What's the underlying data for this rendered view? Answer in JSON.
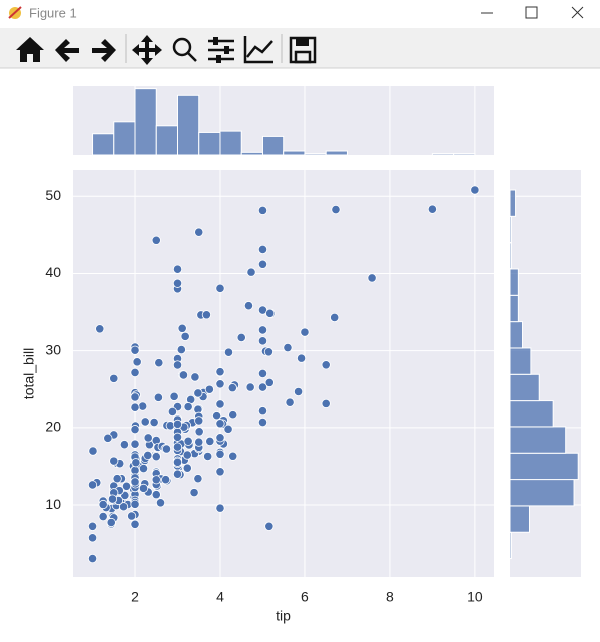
{
  "window": {
    "title": "Figure 1"
  },
  "chart_data": [
    {
      "type": "scatter",
      "x_label": "tip",
      "y_label": "total_bill",
      "color": "#4c72b0",
      "grid": true,
      "xlim": [
        0.54,
        10.45
      ],
      "ylim": [
        0.68,
        53.4
      ],
      "xticks": [
        2,
        4,
        6,
        8,
        10
      ],
      "yticks": [
        10,
        20,
        30,
        40,
        50
      ],
      "x": [
        1.01,
        1.66,
        3.5,
        3.31,
        3.61,
        4.71,
        2,
        3.12,
        1.96,
        3.23,
        1.71,
        5,
        1.57,
        3,
        3.02,
        3.92,
        1.67,
        3.71,
        3.5,
        3.35,
        4.08,
        2.75,
        2.23,
        7.58,
        3.18,
        2.34,
        2,
        2,
        4.3,
        3,
        1.45,
        2.5,
        3,
        2.45,
        3.27,
        3.6,
        2,
        3.07,
        2.31,
        5,
        2.24,
        2.54,
        3.06,
        1.32,
        5.6,
        3,
        5,
        6,
        2.05,
        3,
        2.5,
        2.6,
        5.2,
        1.56,
        4.34,
        3.51,
        3,
        1.5,
        1.76,
        6.73,
        3.21,
        2,
        1.98,
        3.76,
        2.64,
        3.15,
        2.47,
        1,
        2.01,
        2.09,
        1.97,
        3,
        3.14,
        5,
        2.2,
        1.25,
        3.08,
        4,
        3,
        2.71,
        3,
        3.4,
        1.83,
        5,
        2.03,
        5.17,
        2,
        4,
        5.85,
        3,
        3,
        3.5,
        1,
        4.3,
        3.25,
        4.73,
        4,
        1.5,
        3,
        1.5,
        2.5,
        3,
        2.5,
        3.48,
        4.08,
        1.64,
        4.06,
        4.29,
        3.76,
        4,
        3,
        1,
        4,
        2.55,
        4,
        3.5,
        5.07,
        1.5,
        1.8,
        2.92,
        2.31,
        1.68,
        2.5,
        2,
        2.52,
        4.2,
        1.48,
        2,
        2,
        2.18,
        1.5,
        2.83,
        1.5,
        2,
        3.25,
        1.25,
        2,
        2,
        2,
        2.75,
        3.5,
        6.7,
        5,
        5,
        2.3,
        1.5,
        1.36,
        1.63,
        1.73,
        2,
        2.5,
        2,
        2.74,
        2,
        2,
        5.14,
        5,
        3.75,
        2.61,
        2,
        3.5,
        2.5,
        2,
        2,
        3,
        3.48,
        2.24,
        4.5,
        1.61,
        2,
        10,
        3.16,
        5.15,
        3.18,
        4,
        3.11,
        2,
        2,
        4,
        3.55,
        3.68,
        5.65,
        3.5,
        6.5,
        3,
        5,
        3.5,
        2,
        3.5,
        4,
        1.5,
        4.19,
        2.56,
        2.02,
        4,
        1.44,
        2,
        5,
        2,
        2,
        4,
        2.01,
        2,
        2.5,
        4,
        3.23,
        3.41,
        3,
        2.03,
        2.23,
        2,
        5.16,
        9,
        2.5,
        6.5,
        1.1,
        3,
        1.5,
        1.44,
        3.09,
        2.2,
        3.48,
        1.92,
        3,
        1.58,
        2.5,
        2,
        3,
        2.72,
        2.88,
        2,
        3,
        3.39,
        1.47,
        3,
        1.25,
        1,
        1.17,
        4.67,
        5.92,
        2,
        2,
        1.75,
        3
      ],
      "values": [
        16.99,
        10.34,
        21.01,
        23.68,
        24.59,
        25.29,
        8.77,
        26.88,
        15.04,
        14.78,
        10.27,
        35.26,
        15.42,
        18.43,
        14.83,
        21.58,
        10.33,
        16.29,
        16.97,
        20.65,
        17.92,
        20.29,
        15.77,
        39.42,
        19.82,
        17.81,
        13.37,
        12.69,
        21.7,
        19.65,
        9.55,
        18.35,
        15.06,
        20.69,
        17.78,
        24.06,
        16.31,
        16.93,
        18.69,
        31.27,
        16.04,
        17.46,
        13.94,
        9.68,
        30.4,
        18.29,
        22.23,
        32.4,
        28.55,
        18.04,
        12.54,
        10.29,
        34.81,
        9.94,
        25.56,
        19.49,
        38.01,
        26.41,
        11.24,
        48.27,
        20.29,
        13.81,
        11.02,
        18.29,
        17.59,
        20.08,
        16.45,
        3.07,
        20.23,
        15.01,
        12.02,
        17.07,
        26.86,
        25.28,
        14.73,
        10.51,
        17.92,
        27.2,
        22.76,
        17.29,
        19.44,
        16.66,
        10.07,
        32.68,
        15.98,
        34.83,
        13.03,
        18.28,
        24.71,
        21.16,
        28.97,
        22.49,
        5.75,
        16.32,
        22.75,
        40.17,
        27.28,
        12.03,
        21.01,
        12.46,
        11.35,
        15.38,
        44.3,
        22.42,
        20.92,
        15.36,
        20.49,
        25.21,
        18.24,
        14.31,
        14,
        7.25,
        38.07,
        23.95,
        25.71,
        17.31,
        29.93,
        10.65,
        12.43,
        24.08,
        11.69,
        13.42,
        14.26,
        15.95,
        12.48,
        29.8,
        8.52,
        14.52,
        11.38,
        22.82,
        19.08,
        20.27,
        11.17,
        12.26,
        18.26,
        8.51,
        10.33,
        14.15,
        16,
        13.16,
        17.47,
        34.3,
        41.19,
        27.05,
        16.43,
        8.35,
        18.64,
        11.87,
        9.78,
        7.51,
        14.07,
        13.13,
        17.26,
        24.55,
        19.77,
        29.85,
        48.17,
        25,
        13.39,
        16.49,
        21.5,
        12.66,
        16.21,
        13.81,
        17.51,
        24.52,
        20.76,
        31.71,
        10.59,
        10.63,
        50.81,
        15.81,
        7.25,
        31.85,
        16.82,
        32.9,
        17.89,
        14.48,
        9.6,
        34.63,
        34.65,
        23.33,
        45.35,
        23.17,
        40.55,
        20.69,
        20.9,
        30.46,
        18.15,
        23.1,
        15.69,
        19.81,
        28.44,
        15.48,
        16.58,
        7.56,
        10.34,
        43.11,
        13,
        13.51,
        18.71,
        12.74,
        13,
        16.4,
        20.53,
        16.47,
        26.59,
        38.73,
        24.27,
        12.76,
        30.06,
        25.89,
        48.33,
        13.27,
        28.17,
        12.9,
        28.15,
        11.59,
        7.74,
        30.14,
        12.16,
        13.42,
        8.58,
        15.98,
        13.42,
        16.27,
        10.09,
        20.45,
        13.28,
        22.12,
        24.01,
        15.69,
        11.61,
        10.77,
        15.53,
        10.07,
        12.6,
        32.83,
        35.83,
        29.03,
        27.18,
        22.67,
        17.82,
        18.78
      ]
    },
    {
      "type": "histogram",
      "orientation": "vertical",
      "color": "#4c72b0",
      "xlim": [
        0.54,
        10.45
      ],
      "ylim": [
        0,
        52
      ],
      "bins": [
        1,
        1.5,
        2,
        2.5,
        3,
        3.5,
        4,
        4.5,
        5,
        5.5,
        6,
        6.5,
        7,
        7.5,
        8,
        8.5,
        9,
        9.5,
        10
      ],
      "values": [
        16,
        25,
        50,
        22,
        45,
        17,
        18,
        2,
        14,
        3,
        1,
        3,
        0,
        0,
        0,
        0,
        1,
        1
      ]
    },
    {
      "type": "histogram",
      "orientation": "horizontal",
      "color": "#4c72b0",
      "ylim": [
        0.68,
        53.4
      ],
      "xlim": [
        0,
        51
      ],
      "bins": [
        3.07,
        6.48,
        9.89,
        13.3,
        16.71,
        20.12,
        23.53,
        26.94,
        30.35,
        33.76,
        37.17,
        40.58,
        43.99,
        47.4,
        50.81
      ],
      "values": [
        1,
        14,
        46,
        49,
        40,
        31,
        21,
        15,
        9,
        6,
        6,
        1,
        1,
        4
      ]
    }
  ]
}
